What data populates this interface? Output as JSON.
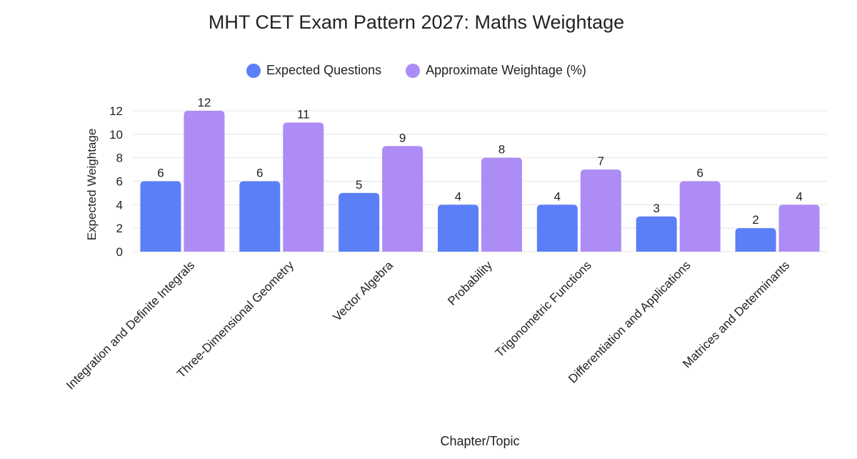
{
  "chart_data": {
    "type": "bar",
    "title": "MHT CET Exam Pattern 2027: Maths Weightage",
    "xlabel": "Chapter/Topic",
    "ylabel": "Expected Weightage",
    "categories": [
      "Integration and Definite Integrals",
      "Three-Dimensional Geometry",
      "Vector Algebra",
      "Probability",
      "Trigonometric Functions",
      "Differentiation and Applications",
      "Matrices and Determinants"
    ],
    "series": [
      {
        "name": "Expected Questions",
        "color": "#5B7FF7",
        "values": [
          6,
          6,
          5,
          4,
          4,
          3,
          2
        ]
      },
      {
        "name": "Approximate Weightage (%)",
        "color": "#AD8CF5",
        "values": [
          12,
          11,
          9,
          8,
          7,
          6,
          4
        ]
      }
    ],
    "yticks": [
      0,
      2,
      4,
      6,
      8,
      10,
      12
    ],
    "ylim": [
      0,
      12
    ],
    "grid": true,
    "legend_position": "top-center",
    "data_labels": true
  }
}
